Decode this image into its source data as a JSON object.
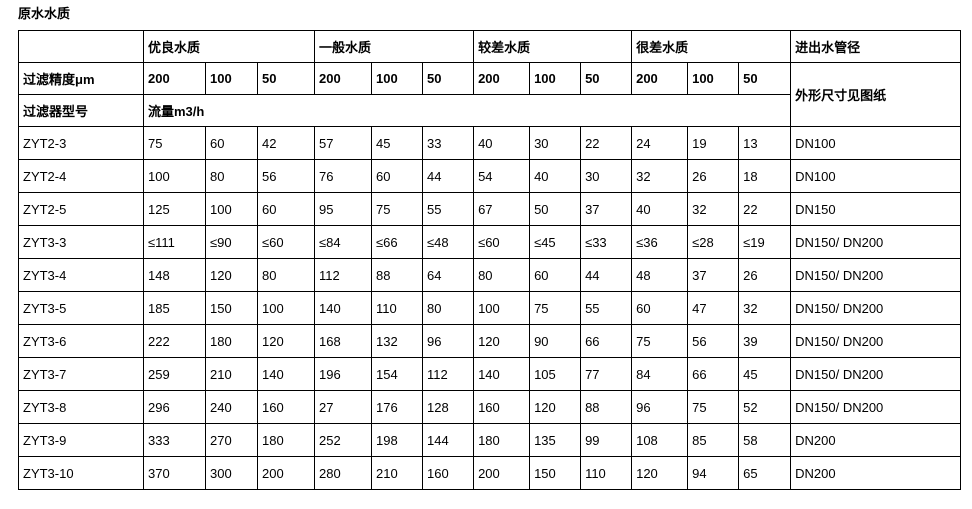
{
  "page": {
    "title": "原水水质"
  },
  "table": {
    "quality_headers": [
      "优良水质",
      "一般水质",
      "较差水质",
      "很差水质"
    ],
    "pipe_header": "进出水管径",
    "precision_label": "过滤精度μm",
    "precision_values": [
      "200",
      "100",
      "50",
      "200",
      "100",
      "50",
      "200",
      "100",
      "50",
      "200",
      "100",
      "50"
    ],
    "model_label": "过滤器型号",
    "flow_label": "流量m3/h",
    "dimension_note": "外形尺寸见图纸",
    "rows": [
      {
        "model": "ZYT2-3",
        "values": [
          "75",
          "60",
          "42",
          "57",
          "45",
          "33",
          "40",
          "30",
          "22",
          "24",
          "19",
          "13"
        ],
        "pipe": "DN100"
      },
      {
        "model": "ZYT2-4",
        "values": [
          "100",
          "80",
          "56",
          "76",
          "60",
          "44",
          "54",
          "40",
          "30",
          "32",
          "26",
          "18"
        ],
        "pipe": "DN100"
      },
      {
        "model": "ZYT2-5",
        "values": [
          "125",
          "100",
          "60",
          "95",
          "75",
          "55",
          "67",
          "50",
          "37",
          "40",
          "32",
          "22"
        ],
        "pipe": "DN150"
      },
      {
        "model": "ZYT3-3",
        "values": [
          "≤111",
          "≤90",
          "≤60",
          "≤84",
          "≤66",
          "≤48",
          "≤60",
          "≤45",
          "≤33",
          "≤36",
          "≤28",
          "≤19"
        ],
        "pipe": "DN150/ DN200"
      },
      {
        "model": "ZYT3-4",
        "values": [
          "148",
          "120",
          "80",
          "112",
          "88",
          "64",
          "80",
          "60",
          "44",
          "48",
          "37",
          "26"
        ],
        "pipe": "DN150/ DN200"
      },
      {
        "model": "ZYT3-5",
        "values": [
          "185",
          "150",
          "100",
          "140",
          "110",
          "80",
          "100",
          "75",
          "55",
          "60",
          "47",
          "32"
        ],
        "pipe": "DN150/ DN200"
      },
      {
        "model": "ZYT3-6",
        "values": [
          "222",
          "180",
          "120",
          "168",
          "132",
          "96",
          "120",
          "90",
          "66",
          "75",
          "56",
          "39"
        ],
        "pipe": "DN150/ DN200"
      },
      {
        "model": "ZYT3-7",
        "values": [
          "259",
          "210",
          "140",
          "196",
          "154",
          "112",
          "140",
          "105",
          "77",
          "84",
          "66",
          "45"
        ],
        "pipe": "DN150/ DN200"
      },
      {
        "model": "ZYT3-8",
        "values": [
          "296",
          "240",
          "160",
          "27",
          "176",
          "128",
          "160",
          "120",
          "88",
          "96",
          "75",
          "52"
        ],
        "pipe": "DN150/ DN200"
      },
      {
        "model": "ZYT3-9",
        "values": [
          "333",
          "270",
          "180",
          "252",
          "198",
          "144",
          "180",
          "135",
          "99",
          "108",
          "85",
          "58"
        ],
        "pipe": "DN200"
      },
      {
        "model": "ZYT3-10",
        "values": [
          "370",
          "300",
          "200",
          "280",
          "210",
          "160",
          "200",
          "150",
          "110",
          "120",
          "94",
          "65"
        ],
        "pipe": "DN200"
      }
    ]
  }
}
